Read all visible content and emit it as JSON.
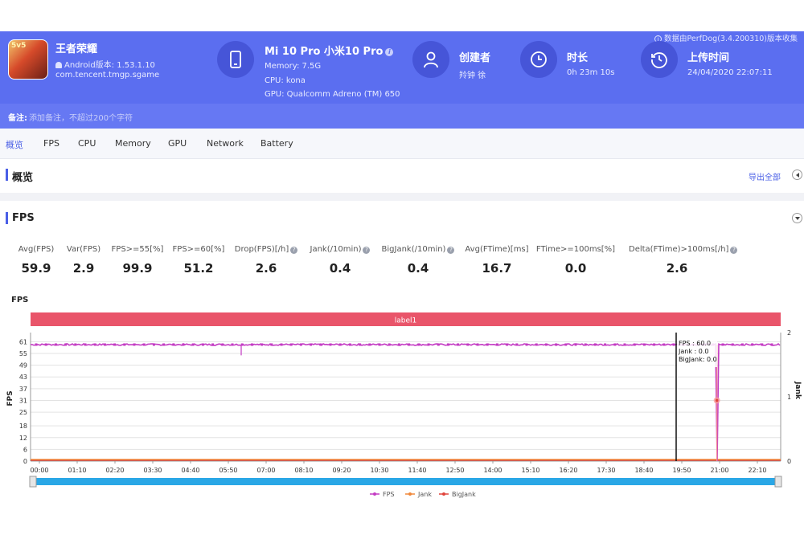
{
  "header": {
    "source_note": "数据由PerfDog(3.4.200310)版本收集",
    "app": {
      "name": "王者荣耀",
      "badge": "5v5",
      "version": "Android版本: 1.53.1.10",
      "package": "com.tencent.tmgp.sgame"
    },
    "device": {
      "title": "Mi 10 Pro 小米10 Pro",
      "memory": "Memory: 7.5G",
      "cpu": "CPU: kona",
      "gpu": "GPU: Qualcomm Adreno (TM) 650",
      "info_glyph": "i"
    },
    "creator": {
      "title": "创建者",
      "value": "羚钟 徐"
    },
    "duration": {
      "title": "时长",
      "value": "0h 23m 10s"
    },
    "upload": {
      "title": "上传时间",
      "value": "24/04/2020 22:07:11"
    },
    "note": {
      "label": "备注:",
      "placeholder": "添加备注，不超过200个字符"
    }
  },
  "tabs": [
    {
      "label": "概览",
      "active": true
    },
    {
      "label": "FPS"
    },
    {
      "label": "CPU"
    },
    {
      "label": "Memory"
    },
    {
      "label": "GPU"
    },
    {
      "label": "Network"
    },
    {
      "label": "Battery"
    }
  ],
  "overview": {
    "title": "概览",
    "export_label": "导出全部"
  },
  "fps_section": {
    "title": "FPS",
    "metrics": [
      {
        "label": "Avg(FPS)",
        "value": "59.9",
        "help": false
      },
      {
        "label": "Var(FPS)",
        "value": "2.9",
        "help": false
      },
      {
        "label": "FPS>=55[%]",
        "value": "99.9",
        "help": false
      },
      {
        "label": "FPS>=60[%]",
        "value": "51.2",
        "help": false
      },
      {
        "label": "Drop(FPS)[/h]",
        "value": "2.6",
        "help": true
      },
      {
        "label": "Jank(/10min)",
        "value": "0.4",
        "help": true
      },
      {
        "label": "BigJank(/10min)",
        "value": "0.4",
        "help": true
      },
      {
        "label": "Avg(FTime)[ms]",
        "value": "16.7",
        "help": false
      },
      {
        "label": "FTime>=100ms[%]",
        "value": "0.0",
        "help": false
      },
      {
        "label": "Delta(FTime)>100ms[/h]",
        "value": "2.6",
        "help": true
      }
    ]
  },
  "chart_data": {
    "type": "line",
    "title": "FPS",
    "ylabel": "FPS",
    "y2label": "Jank",
    "label_band": "label1",
    "y_ticks": [
      0,
      6,
      12,
      18,
      25,
      31,
      37,
      43,
      49,
      55,
      61
    ],
    "ylim": [
      0,
      64
    ],
    "y2_ticks": [
      0,
      1,
      2
    ],
    "x_ticks": [
      "00:00",
      "01:10",
      "02:20",
      "03:30",
      "04:40",
      "05:50",
      "07:00",
      "08:10",
      "09:20",
      "10:30",
      "11:40",
      "12:50",
      "14:00",
      "15:10",
      "16:20",
      "17:30",
      "18:40",
      "19:50",
      "21:00",
      "22:10"
    ],
    "series": [
      {
        "name": "FPS",
        "color": "#c33bc3",
        "baseline": 59.5,
        "drop_at": "20:55",
        "drop_min": 0
      },
      {
        "name": "Jank",
        "color": "#f0883a",
        "baseline": 0
      },
      {
        "name": "BigJank",
        "color": "#e0443c",
        "baseline": 0
      }
    ],
    "cursor": {
      "time": "19:50",
      "lines": [
        "FPS      : 60.0",
        "Jank     : 0.0",
        "BigJank: 0.0"
      ]
    },
    "grid": true,
    "legend": "bottom-center"
  },
  "colors": {
    "header": "#5b6ef0",
    "accent": "#4a5fe6",
    "label_band": "#e9556a",
    "scrollbar": "#2aa7e6"
  }
}
